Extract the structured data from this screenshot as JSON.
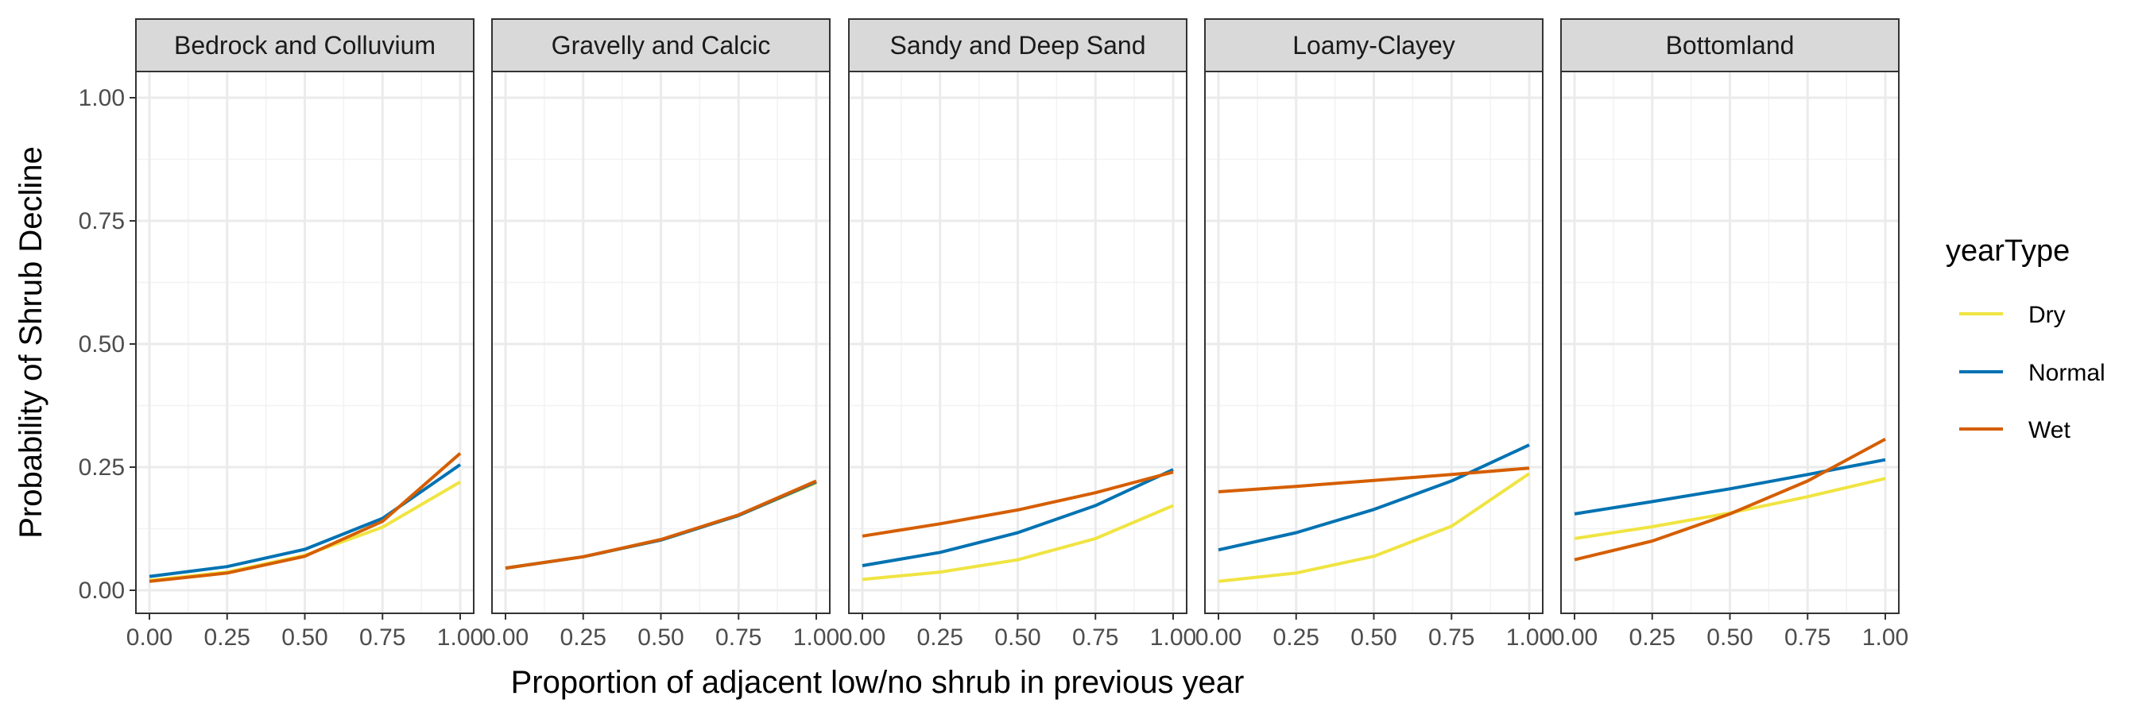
{
  "chart_data": {
    "type": "line",
    "facet_variable": "soil group",
    "facets": [
      "Bedrock and Colluvium",
      "Gravelly and Calcic",
      "Sandy and Deep Sand",
      "Loamy-Clayey",
      "Bottomland"
    ],
    "xlabel": "Proportion of adjacent low/no shrub in previous year",
    "ylabel": "Probability of Shrub Decline",
    "xlim": [
      0,
      1
    ],
    "ylim": [
      0,
      1.05
    ],
    "x_ticks": [
      "0.00",
      "0.25",
      "0.50",
      "0.75",
      "1.00"
    ],
    "y_ticks": [
      "0.00",
      "0.25",
      "0.50",
      "0.75",
      "1.00"
    ],
    "legend": {
      "title": "yearType",
      "position": "right",
      "entries": [
        "Dry",
        "Normal",
        "Wet"
      ]
    },
    "colors": {
      "Dry": "#F0E442",
      "Normal": "#0072B2",
      "Wet": "#D55E00"
    },
    "grid": true,
    "x": [
      0,
      0.25,
      0.5,
      0.75,
      1.0
    ],
    "panels": [
      {
        "facet": "Bedrock and Colluvium",
        "series": [
          {
            "name": "Dry",
            "values": [
              0.02,
              0.037,
              0.071,
              0.128,
              0.22
            ]
          },
          {
            "name": "Normal",
            "values": [
              0.028,
              0.048,
              0.083,
              0.146,
              0.255
            ]
          },
          {
            "name": "Wet",
            "values": [
              0.018,
              0.035,
              0.069,
              0.14,
              0.278
            ]
          }
        ]
      },
      {
        "facet": "Gravelly and Calcic",
        "series": [
          {
            "name": "Dry",
            "values": [
              0.045,
              0.068,
              0.102,
              0.152,
              0.218
            ]
          },
          {
            "name": "Normal",
            "values": [
              0.045,
              0.068,
              0.102,
              0.152,
              0.22
            ]
          },
          {
            "name": "Wet",
            "values": [
              0.045,
              0.068,
              0.103,
              0.153,
              0.222
            ]
          }
        ]
      },
      {
        "facet": "Sandy and Deep Sand",
        "series": [
          {
            "name": "Dry",
            "values": [
              0.022,
              0.037,
              0.062,
              0.105,
              0.172
            ]
          },
          {
            "name": "Normal",
            "values": [
              0.05,
              0.077,
              0.117,
              0.172,
              0.245
            ]
          },
          {
            "name": "Wet",
            "values": [
              0.11,
              0.135,
              0.163,
              0.198,
              0.24
            ]
          }
        ]
      },
      {
        "facet": "Loamy-Clayey",
        "series": [
          {
            "name": "Dry",
            "values": [
              0.018,
              0.035,
              0.069,
              0.13,
              0.237
            ]
          },
          {
            "name": "Normal",
            "values": [
              0.082,
              0.117,
              0.164,
              0.222,
              0.295
            ]
          },
          {
            "name": "Wet",
            "values": [
              0.2,
              0.211,
              0.223,
              0.235,
              0.248
            ]
          }
        ]
      },
      {
        "facet": "Bottomland",
        "series": [
          {
            "name": "Dry",
            "values": [
              0.105,
              0.129,
              0.157,
              0.19,
              0.227
            ]
          },
          {
            "name": "Normal",
            "values": [
              0.155,
              0.18,
              0.206,
              0.235,
              0.265
            ]
          },
          {
            "name": "Wet",
            "values": [
              0.062,
              0.1,
              0.155,
              0.222,
              0.307
            ]
          }
        ]
      }
    ]
  }
}
